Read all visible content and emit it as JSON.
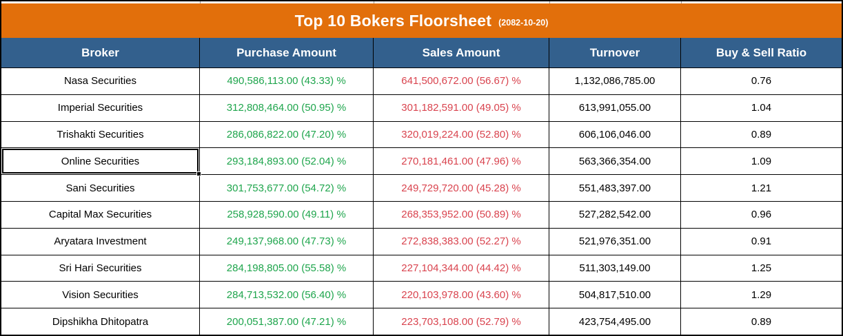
{
  "title": {
    "text": "Top 10 Bokers Floorsheet",
    "date": "(2082-10-20)"
  },
  "columns": [
    "Broker",
    "Purchase Amount",
    "Sales Amount",
    "Turnover",
    "Buy & Sell Ratio"
  ],
  "rows": [
    {
      "broker": "Nasa Securities",
      "purchase": "490,586,113.00 (43.33) %",
      "sales": "641,500,672.00 (56.67) %",
      "turnover": "1,132,086,785.00",
      "ratio": "0.76",
      "selected": false
    },
    {
      "broker": "Imperial Securities",
      "purchase": "312,808,464.00 (50.95) %",
      "sales": "301,182,591.00 (49.05) %",
      "turnover": "613,991,055.00",
      "ratio": "1.04",
      "selected": false
    },
    {
      "broker": "Trishakti Securities",
      "purchase": "286,086,822.00 (47.20) %",
      "sales": "320,019,224.00 (52.80) %",
      "turnover": "606,106,046.00",
      "ratio": "0.89",
      "selected": false
    },
    {
      "broker": "Online Securities",
      "purchase": "293,184,893.00 (52.04) %",
      "sales": "270,181,461.00 (47.96) %",
      "turnover": "563,366,354.00",
      "ratio": "1.09",
      "selected": true
    },
    {
      "broker": "Sani Securities",
      "purchase": "301,753,677.00 (54.72) %",
      "sales": "249,729,720.00 (45.28) %",
      "turnover": "551,483,397.00",
      "ratio": "1.21",
      "selected": false
    },
    {
      "broker": "Capital Max Securities",
      "purchase": "258,928,590.00 (49.11) %",
      "sales": "268,353,952.00 (50.89) %",
      "turnover": "527,282,542.00",
      "ratio": "0.96",
      "selected": false
    },
    {
      "broker": "Aryatara Investment",
      "purchase": "249,137,968.00 (47.73) %",
      "sales": "272,838,383.00 (52.27) %",
      "turnover": "521,976,351.00",
      "ratio": "0.91",
      "selected": false
    },
    {
      "broker": "Sri Hari Securities",
      "purchase": "284,198,805.00 (55.58) %",
      "sales": "227,104,344.00 (44.42) %",
      "turnover": "511,303,149.00",
      "ratio": "1.25",
      "selected": false
    },
    {
      "broker": "Vision Securities",
      "purchase": "284,713,532.00 (56.40) %",
      "sales": "220,103,978.00 (43.60) %",
      "turnover": "504,817,510.00",
      "ratio": "1.29",
      "selected": false
    },
    {
      "broker": "Dipshikha Dhitopatra",
      "purchase": "200,051,387.00 (47.21) %",
      "sales": "223,703,108.00 (52.79) %",
      "turnover": "423,754,495.00",
      "ratio": "0.89",
      "selected": false
    }
  ],
  "colors": {
    "title_bg": "#E26F0B",
    "header_bg": "#33608D",
    "purchase_text": "#1EA54C",
    "sales_text": "#D9434E",
    "gridline": "#000000"
  }
}
